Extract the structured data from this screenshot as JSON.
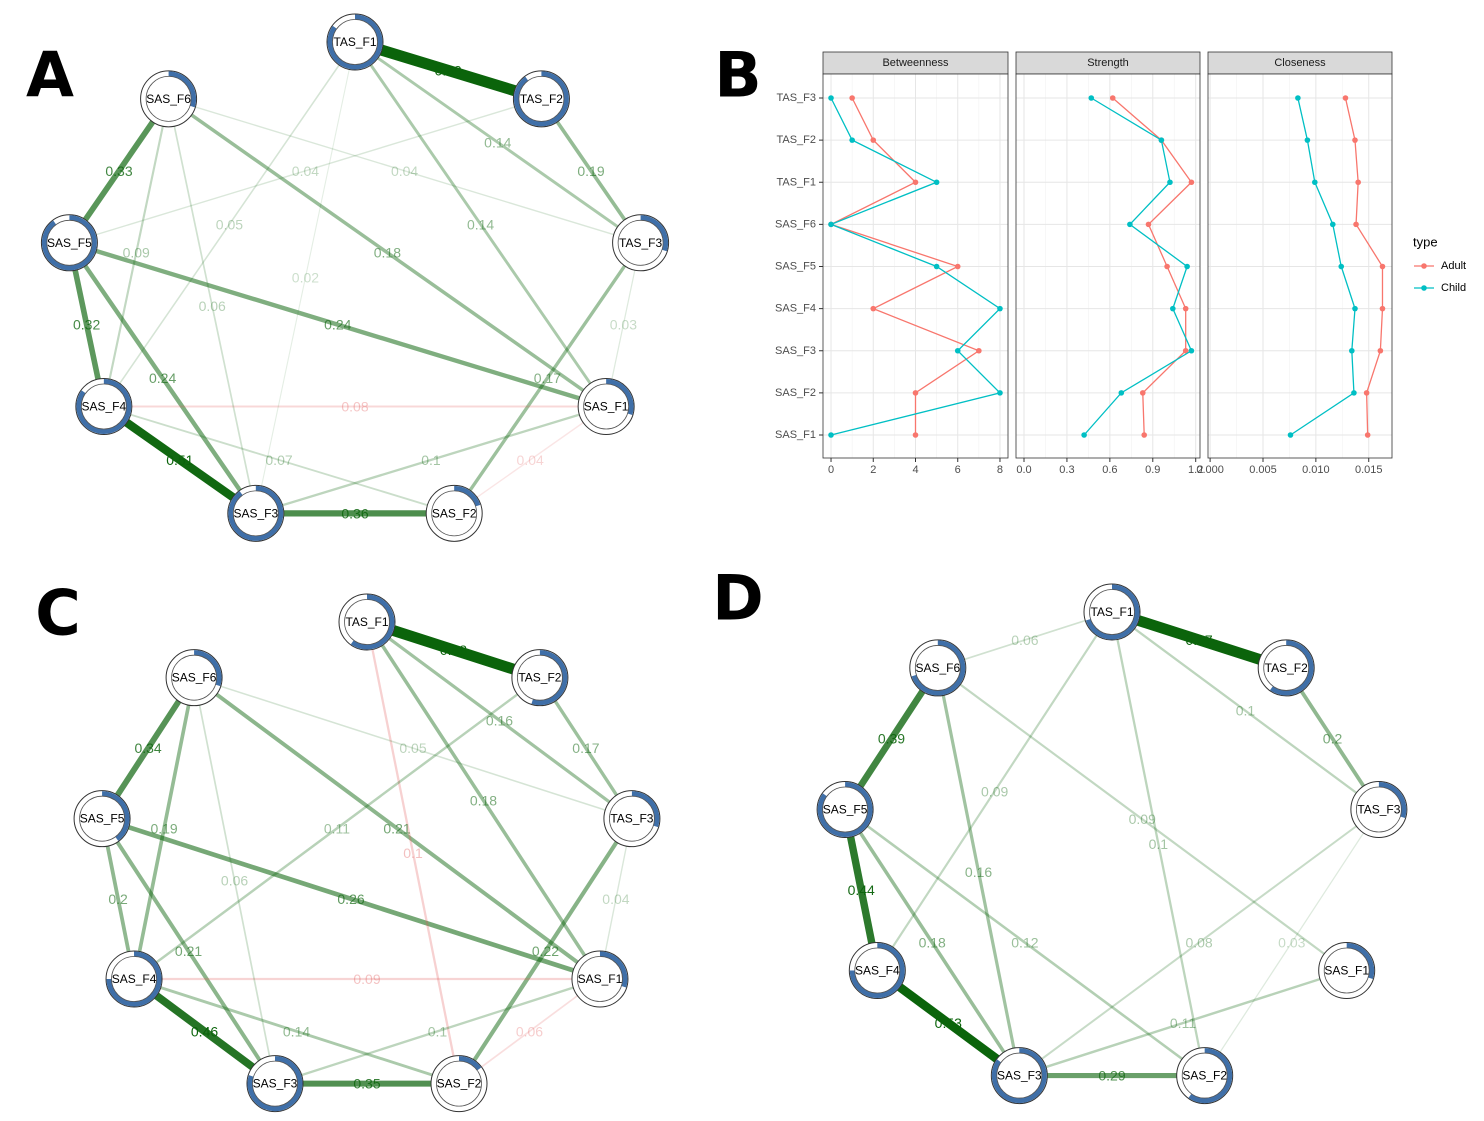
{
  "chart_data": [
    {
      "type": "network",
      "panel_label": "A",
      "nodes": [
        {
          "label": "TAS_F1",
          "pie": 0.85
        },
        {
          "label": "TAS_F2",
          "pie": 0.9
        },
        {
          "label": "TAS_F3",
          "pie": 0.3
        },
        {
          "label": "SAS_F1",
          "pie": 0.3
        },
        {
          "label": "SAS_F2",
          "pie": 0.2
        },
        {
          "label": "SAS_F3",
          "pie": 0.9
        },
        {
          "label": "SAS_F4",
          "pie": 0.85
        },
        {
          "label": "SAS_F5",
          "pie": 0.9
        },
        {
          "label": "SAS_F6",
          "pie": 0.3
        }
      ],
      "edges": [
        {
          "from": "TAS_F1",
          "to": "TAS_F2",
          "value": 0.69,
          "color": "#0b640b"
        },
        {
          "from": "SAS_F6",
          "to": "SAS_F5",
          "value": 0.33,
          "color": "#0b640b"
        },
        {
          "from": "TAS_F2",
          "to": "TAS_F3",
          "value": 0.19,
          "color": "#0b640b"
        },
        {
          "from": "TAS_F1",
          "to": "TAS_F3",
          "value": 0.14,
          "color": "#0b640b"
        },
        {
          "from": "SAS_F6",
          "to": "SAS_F1",
          "value": 0.18,
          "color": "#0b640b"
        },
        {
          "from": "TAS_F1",
          "to": "SAS_F1",
          "value": 0.14,
          "color": "#0b640b"
        },
        {
          "from": "SAS_F5",
          "to": "SAS_F4",
          "value": 0.32,
          "color": "#0b640b"
        },
        {
          "from": "SAS_F5",
          "to": "SAS_F1",
          "value": 0.24,
          "color": "#0b640b"
        },
        {
          "from": "SAS_F5",
          "to": "SAS_F3",
          "value": 0.24,
          "color": "#0b640b"
        },
        {
          "from": "SAS_F4",
          "to": "SAS_F3",
          "value": 0.51,
          "color": "#0b640b"
        },
        {
          "from": "SAS_F3",
          "to": "SAS_F2",
          "value": 0.36,
          "color": "#0b640b"
        },
        {
          "from": "TAS_F3",
          "to": "SAS_F2",
          "value": 0.17,
          "color": "#0b640b"
        },
        {
          "from": "SAS_F3",
          "to": "SAS_F1",
          "value": 0.1,
          "color": "#0b640b"
        },
        {
          "from": "SAS_F4",
          "to": "SAS_F1",
          "value": 0.08,
          "color": "#e05555"
        },
        {
          "from": "SAS_F4",
          "to": "SAS_F2",
          "value": 0.07,
          "color": "#0b640b"
        },
        {
          "from": "SAS_F2",
          "to": "SAS_F1",
          "value": 0.04,
          "color": "#e05555"
        },
        {
          "from": "SAS_F6",
          "to": "SAS_F4",
          "value": 0.09,
          "color": "#0b640b"
        },
        {
          "from": "SAS_F6",
          "to": "SAS_F3",
          "value": 0.06,
          "color": "#0b640b"
        },
        {
          "from": "TAS_F2",
          "to": "SAS_F5",
          "value": 0.04,
          "color": "#0b640b"
        },
        {
          "from": "TAS_F1",
          "to": "SAS_F4",
          "value": 0.05,
          "color": "#0b640b"
        },
        {
          "from": "SAS_F6",
          "to": "TAS_F3",
          "value": 0.04,
          "color": "#0b640b"
        },
        {
          "from": "TAS_F1",
          "to": "SAS_F3",
          "value": 0.02,
          "color": "#0b640b"
        },
        {
          "from": "TAS_F3",
          "to": "SAS_F1",
          "value": 0.03,
          "color": "#0b640b"
        }
      ]
    },
    {
      "type": "dot",
      "panel_label": "B",
      "grid": true,
      "categories": [
        "TAS_F3",
        "TAS_F2",
        "TAS_F1",
        "SAS_F6",
        "SAS_F5",
        "SAS_F4",
        "SAS_F3",
        "SAS_F2",
        "SAS_F1"
      ],
      "legend_title": "type",
      "series": [
        {
          "name": "Adult",
          "color": "#F8766D"
        },
        {
          "name": "Child",
          "color": "#00BFC4"
        }
      ],
      "facets": [
        {
          "title": "Betweenness",
          "xlim": [
            -0.38,
            8.38
          ],
          "xticks": [
            0,
            2,
            4,
            6,
            8
          ],
          "values": [
            [
              1,
              2,
              4,
              0,
              6,
              2,
              7,
              4,
              4
            ],
            [
              0,
              1,
              5,
              0,
              5,
              8,
              6,
              8,
              0
            ]
          ]
        },
        {
          "title": "Strength",
          "xlim": [
            -0.056,
            1.23
          ],
          "xticks": [
            {
              "value": 0,
              "label": "0.0"
            },
            0.3,
            0.6,
            0.9,
            1.2
          ],
          "values": [
            [
              0.62,
              0.96,
              1.17,
              0.87,
              1.0,
              1.13,
              1.13,
              0.83,
              0.84
            ],
            [
              0.47,
              0.96,
              1.02,
              0.74,
              1.14,
              1.04,
              1.17,
              0.68,
              0.42
            ]
          ]
        },
        {
          "title": "Closeness",
          "xlim": [
            -0.0002,
            0.0172
          ],
          "xticks": [
            {
              "value": 0,
              "label": "0.000"
            },
            0.005,
            {
              "value": 0.01,
              "label": "0.010"
            },
            0.015
          ],
          "values": [
            [
              0.0128,
              0.0137,
              0.014,
              0.0138,
              0.0163,
              0.0163,
              0.0161,
              0.0148,
              0.0149
            ],
            [
              0.0083,
              0.0092,
              0.0099,
              0.0116,
              0.0124,
              0.0137,
              0.0134,
              0.0136,
              0.0076
            ]
          ]
        }
      ]
    },
    {
      "type": "network",
      "panel_label": "C",
      "nodes": [
        {
          "label": "TAS_F1",
          "pie": 0.6
        },
        {
          "label": "TAS_F2",
          "pie": 0.55
        },
        {
          "label": "TAS_F3",
          "pie": 0.3
        },
        {
          "label": "SAS_F1",
          "pie": 0.3
        },
        {
          "label": "SAS_F2",
          "pie": 0.15
        },
        {
          "label": "SAS_F3",
          "pie": 0.8
        },
        {
          "label": "SAS_F4",
          "pie": 0.75
        },
        {
          "label": "SAS_F5",
          "pie": 0.4
        },
        {
          "label": "SAS_F6",
          "pie": 0.3
        }
      ],
      "edges": [
        {
          "from": "TAS_F1",
          "to": "TAS_F2",
          "value": 0.68,
          "color": "#0b640b"
        },
        {
          "from": "SAS_F6",
          "to": "SAS_F5",
          "value": 0.34,
          "color": "#0b640b"
        },
        {
          "from": "TAS_F2",
          "to": "TAS_F3",
          "value": 0.17,
          "color": "#0b640b"
        },
        {
          "from": "TAS_F1",
          "to": "TAS_F3",
          "value": 0.16,
          "color": "#0b640b"
        },
        {
          "from": "SAS_F6",
          "to": "SAS_F1",
          "value": 0.21,
          "color": "#0b640b"
        },
        {
          "from": "TAS_F1",
          "to": "SAS_F1",
          "value": 0.18,
          "color": "#0b640b"
        },
        {
          "from": "SAS_F5",
          "to": "SAS_F1",
          "value": 0.26,
          "color": "#0b640b"
        },
        {
          "from": "SAS_F6",
          "to": "SAS_F4",
          "value": 0.19,
          "color": "#0b640b"
        },
        {
          "from": "SAS_F5",
          "to": "SAS_F4",
          "value": 0.2,
          "color": "#0b640b"
        },
        {
          "from": "SAS_F5",
          "to": "SAS_F3",
          "value": 0.21,
          "color": "#0b640b"
        },
        {
          "from": "SAS_F4",
          "to": "SAS_F3",
          "value": 0.46,
          "color": "#0b640b"
        },
        {
          "from": "SAS_F3",
          "to": "SAS_F2",
          "value": 0.35,
          "color": "#0b640b"
        },
        {
          "from": "TAS_F3",
          "to": "SAS_F2",
          "value": 0.22,
          "color": "#0b640b"
        },
        {
          "from": "TAS_F1",
          "to": "SAS_F2",
          "value": 0.1,
          "color": "#e05555"
        },
        {
          "from": "SAS_F4",
          "to": "SAS_F1",
          "value": 0.09,
          "color": "#e05555"
        },
        {
          "from": "SAS_F4",
          "to": "SAS_F2",
          "value": 0.14,
          "color": "#0b640b"
        },
        {
          "from": "SAS_F3",
          "to": "SAS_F1",
          "value": 0.1,
          "color": "#0b640b"
        },
        {
          "from": "SAS_F2",
          "to": "SAS_F1",
          "value": 0.06,
          "color": "#e05555"
        },
        {
          "from": "TAS_F2",
          "to": "SAS_F4",
          "value": 0.11,
          "color": "#0b640b"
        },
        {
          "from": "SAS_F6",
          "to": "TAS_F3",
          "value": 0.05,
          "color": "#0b640b"
        },
        {
          "from": "TAS_F3",
          "to": "SAS_F1",
          "value": 0.04,
          "color": "#0b640b"
        },
        {
          "from": "SAS_F6",
          "to": "SAS_F3",
          "value": 0.06,
          "color": "#0b640b"
        }
      ]
    },
    {
      "type": "network",
      "panel_label": "D",
      "nodes": [
        {
          "label": "TAS_F1",
          "pie": 0.7
        },
        {
          "label": "TAS_F2",
          "pie": 0.6
        },
        {
          "label": "TAS_F3",
          "pie": 0.3
        },
        {
          "label": "SAS_F1",
          "pie": 0.3
        },
        {
          "label": "SAS_F2",
          "pie": 0.6
        },
        {
          "label": "SAS_F3",
          "pie": 0.85
        },
        {
          "label": "SAS_F4",
          "pie": 0.75
        },
        {
          "label": "SAS_F5",
          "pie": 0.85
        },
        {
          "label": "SAS_F6",
          "pie": 0.7
        }
      ],
      "edges": [
        {
          "from": "TAS_F1",
          "to": "TAS_F2",
          "value": 0.67,
          "color": "#0b640b"
        },
        {
          "from": "SAS_F6",
          "to": "SAS_F5",
          "value": 0.39,
          "color": "#0b640b"
        },
        {
          "from": "TAS_F2",
          "to": "TAS_F3",
          "value": 0.2,
          "color": "#0b640b"
        },
        {
          "from": "TAS_F1",
          "to": "TAS_F3",
          "value": 0.1,
          "color": "#0b640b"
        },
        {
          "from": "SAS_F6",
          "to": "TAS_F1",
          "value": 0.06,
          "color": "#0b640b"
        },
        {
          "from": "SAS_F5",
          "to": "SAS_F4",
          "value": 0.44,
          "color": "#0b640b"
        },
        {
          "from": "SAS_F4",
          "to": "SAS_F3",
          "value": 0.53,
          "color": "#0b640b"
        },
        {
          "from": "SAS_F3",
          "to": "SAS_F2",
          "value": 0.29,
          "color": "#0b640b"
        },
        {
          "from": "SAS_F6",
          "to": "SAS_F3",
          "value": 0.16,
          "color": "#0b640b"
        },
        {
          "from": "SAS_F5",
          "to": "SAS_F2",
          "value": 0.12,
          "color": "#0b640b"
        },
        {
          "from": "SAS_F5",
          "to": "SAS_F3",
          "value": 0.18,
          "color": "#0b640b"
        },
        {
          "from": "TAS_F1",
          "to": "SAS_F4",
          "value": 0.09,
          "color": "#0b640b"
        },
        {
          "from": "SAS_F6",
          "to": "SAS_F1",
          "value": 0.09,
          "color": "#0b640b"
        },
        {
          "from": "TAS_F1",
          "to": "SAS_F2",
          "value": 0.1,
          "color": "#0b640b"
        },
        {
          "from": "SAS_F3",
          "to": "SAS_F1",
          "value": 0.11,
          "color": "#0b640b"
        },
        {
          "from": "TAS_F3",
          "to": "SAS_F3",
          "value": 0.08,
          "color": "#0b640b"
        },
        {
          "from": "TAS_F3",
          "to": "SAS_F2",
          "value": 0.03,
          "color": "#0b640b"
        }
      ]
    }
  ]
}
